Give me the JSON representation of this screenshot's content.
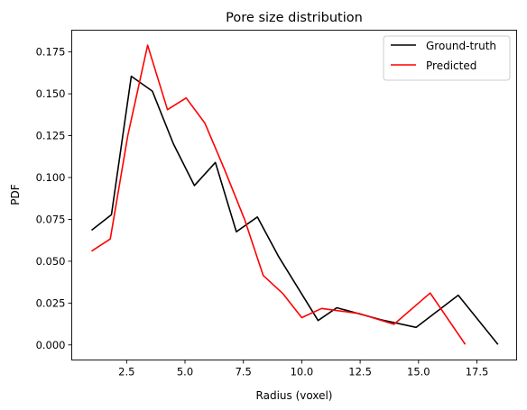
{
  "chart_data": {
    "type": "line",
    "title": "Pore size distribution",
    "xlabel": "Radius (voxel)",
    "ylabel": "PDF",
    "xlim": [
      0.15,
      19.2
    ],
    "ylim": [
      -0.009,
      0.188
    ],
    "xticks": [
      {
        "v": 2.5,
        "label": "2.5"
      },
      {
        "v": 5.0,
        "label": "5.0"
      },
      {
        "v": 7.5,
        "label": "7.5"
      },
      {
        "v": 10.0,
        "label": "10.0"
      },
      {
        "v": 12.5,
        "label": "12.5"
      },
      {
        "v": 15.0,
        "label": "15.0"
      },
      {
        "v": 17.5,
        "label": "17.5"
      }
    ],
    "yticks": [
      {
        "v": 0.0,
        "label": "0.000"
      },
      {
        "v": 0.025,
        "label": "0.025"
      },
      {
        "v": 0.05,
        "label": "0.050"
      },
      {
        "v": 0.075,
        "label": "0.075"
      },
      {
        "v": 0.1,
        "label": "0.100"
      },
      {
        "v": 0.125,
        "label": "0.125"
      },
      {
        "v": 0.15,
        "label": "0.150"
      },
      {
        "v": 0.175,
        "label": "0.175"
      }
    ],
    "grid": false,
    "legend": "top-right",
    "series": [
      {
        "name": "Ground-truth",
        "color": "#000000",
        "points": [
          [
            1.0,
            0.0685
          ],
          [
            1.85,
            0.0778
          ],
          [
            2.7,
            0.1605
          ],
          [
            3.6,
            0.1516
          ],
          [
            4.5,
            0.1202
          ],
          [
            5.4,
            0.0952
          ],
          [
            6.3,
            0.109
          ],
          [
            7.2,
            0.0676
          ],
          [
            8.1,
            0.0764
          ],
          [
            9.0,
            0.053
          ],
          [
            10.7,
            0.0146
          ],
          [
            11.5,
            0.0222
          ],
          [
            13.4,
            0.015
          ],
          [
            14.9,
            0.0105
          ],
          [
            16.7,
            0.0297
          ],
          [
            18.4,
            0.0003
          ]
        ]
      },
      {
        "name": "Predicted",
        "color": "#ff0000",
        "points": [
          [
            1.0,
            0.056
          ],
          [
            1.8,
            0.0633
          ],
          [
            2.55,
            0.125
          ],
          [
            3.4,
            0.179
          ],
          [
            4.25,
            0.1405
          ],
          [
            5.05,
            0.1475
          ],
          [
            5.85,
            0.1325
          ],
          [
            6.7,
            0.1045
          ],
          [
            7.55,
            0.075
          ],
          [
            8.35,
            0.0415
          ],
          [
            9.2,
            0.0305
          ],
          [
            10.0,
            0.0163
          ],
          [
            10.85,
            0.0218
          ],
          [
            12.45,
            0.0188
          ],
          [
            13.95,
            0.0123
          ],
          [
            15.5,
            0.031
          ],
          [
            17.0,
            0.0003
          ]
        ]
      }
    ]
  }
}
